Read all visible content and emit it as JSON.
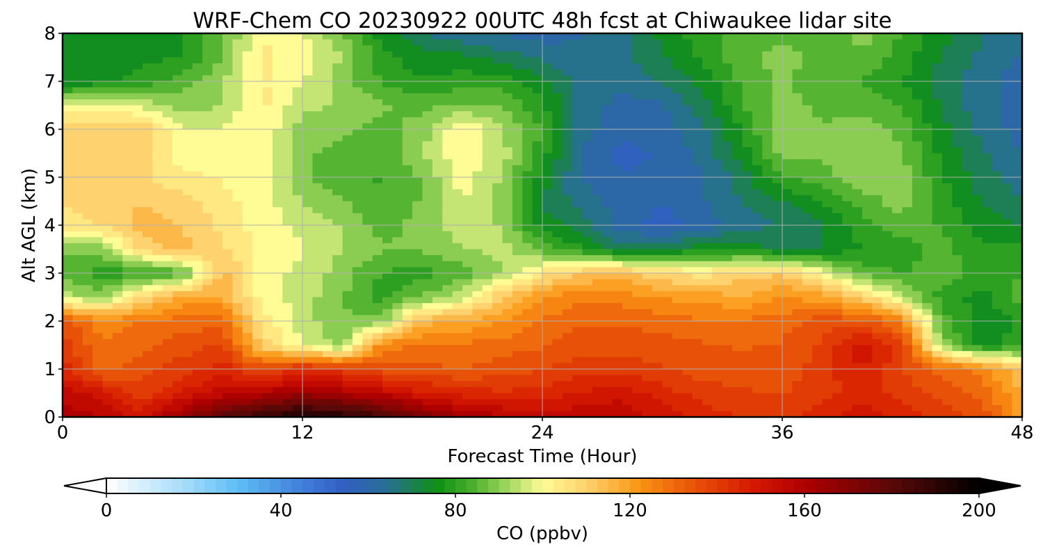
{
  "chart_data": {
    "type": "heatmap",
    "title": "WRF-Chem CO  20230922 00UTC 48h fcst at Chiwaukee lidar site",
    "xlabel": "Forecast Time (Hour)",
    "ylabel": "Alt AGL (km)",
    "xlim": [
      0,
      48
    ],
    "ylim": [
      0,
      8
    ],
    "x_ticks": [
      0,
      12,
      24,
      36,
      48
    ],
    "y_ticks": [
      0,
      1,
      2,
      3,
      4,
      5,
      6,
      7,
      8
    ],
    "grid": true,
    "colorbar": {
      "label": "CO  (ppbv)",
      "range": [
        0,
        200
      ],
      "ticks": [
        0,
        40,
        80,
        120,
        160,
        200
      ],
      "extend": "both",
      "placement": "bottom"
    },
    "x": [
      0,
      2,
      4,
      6,
      8,
      10,
      12,
      14,
      16,
      18,
      20,
      22,
      24,
      26,
      28,
      30,
      32,
      34,
      36,
      38,
      40,
      42,
      44,
      46,
      48
    ],
    "y": [
      0,
      0.5,
      1,
      1.5,
      2,
      2.5,
      3,
      3.5,
      4,
      4.5,
      5,
      5.5,
      6,
      6.5,
      7,
      7.5,
      8
    ],
    "z": [
      [
        160,
        158,
        150,
        165,
        180,
        188,
        195,
        192,
        185,
        172,
        162,
        158,
        155,
        156,
        158,
        150,
        145,
        142,
        140,
        145,
        150,
        145,
        140,
        135,
        120
      ],
      [
        155,
        150,
        140,
        148,
        155,
        158,
        165,
        160,
        155,
        148,
        145,
        143,
        145,
        148,
        150,
        145,
        140,
        138,
        137,
        140,
        145,
        140,
        136,
        130,
        118
      ],
      [
        145,
        130,
        135,
        140,
        145,
        135,
        145,
        140,
        135,
        135,
        132,
        135,
        137,
        140,
        140,
        138,
        135,
        135,
        135,
        140,
        148,
        138,
        130,
        125,
        112
      ],
      [
        140,
        128,
        130,
        135,
        138,
        110,
        98,
        90,
        125,
        128,
        128,
        130,
        132,
        136,
        135,
        135,
        133,
        132,
        133,
        138,
        150,
        140,
        90,
        75,
        80
      ],
      [
        135,
        125,
        128,
        130,
        130,
        105,
        95,
        88,
        90,
        115,
        118,
        122,
        128,
        132,
        132,
        130,
        128,
        128,
        130,
        135,
        135,
        125,
        85,
        75,
        78
      ],
      [
        95,
        90,
        108,
        118,
        118,
        100,
        95,
        88,
        80,
        88,
        95,
        112,
        122,
        126,
        125,
        122,
        120,
        118,
        122,
        120,
        110,
        95,
        80,
        75,
        85
      ],
      [
        85,
        80,
        80,
        85,
        115,
        100,
        96,
        90,
        82,
        80,
        85,
        92,
        105,
        112,
        114,
        108,
        105,
        110,
        112,
        100,
        85,
        82,
        85,
        80,
        82
      ],
      [
        88,
        90,
        110,
        115,
        108,
        100,
        98,
        92,
        88,
        88,
        92,
        95,
        85,
        78,
        70,
        72,
        75,
        75,
        72,
        72,
        78,
        80,
        85,
        78,
        80
      ],
      [
        105,
        108,
        115,
        112,
        106,
        100,
        96,
        92,
        85,
        90,
        95,
        92,
        75,
        70,
        60,
        55,
        60,
        65,
        68,
        72,
        80,
        85,
        82,
        75,
        72
      ],
      [
        108,
        110,
        112,
        110,
        104,
        100,
        92,
        88,
        82,
        88,
        98,
        90,
        72,
        65,
        60,
        58,
        62,
        68,
        72,
        78,
        85,
        90,
        80,
        72,
        68
      ],
      [
        110,
        110,
        108,
        104,
        102,
        100,
        88,
        85,
        82,
        88,
        100,
        92,
        75,
        62,
        58,
        58,
        62,
        70,
        82,
        85,
        92,
        90,
        78,
        70,
        65
      ],
      [
        112,
        112,
        110,
        100,
        100,
        100,
        88,
        86,
        84,
        92,
        102,
        95,
        80,
        62,
        56,
        58,
        64,
        75,
        90,
        88,
        92,
        88,
        76,
        68,
        62
      ],
      [
        112,
        112,
        112,
        98,
        98,
        102,
        90,
        88,
        86,
        90,
        104,
        92,
        82,
        65,
        58,
        60,
        66,
        78,
        92,
        88,
        90,
        86,
        74,
        66,
        60
      ],
      [
        98,
        100,
        96,
        90,
        92,
        104,
        94,
        92,
        88,
        86,
        88,
        88,
        78,
        66,
        60,
        62,
        70,
        82,
        90,
        86,
        86,
        82,
        72,
        64,
        60
      ],
      [
        72,
        75,
        80,
        85,
        92,
        103,
        98,
        90,
        82,
        78,
        80,
        80,
        74,
        66,
        64,
        68,
        74,
        84,
        88,
        84,
        82,
        78,
        70,
        64,
        60
      ],
      [
        76,
        72,
        76,
        78,
        88,
        104,
        100,
        92,
        80,
        74,
        74,
        70,
        66,
        64,
        66,
        72,
        78,
        86,
        90,
        85,
        86,
        80,
        72,
        66,
        62
      ],
      [
        78,
        74,
        72,
        76,
        86,
        102,
        98,
        88,
        74,
        68,
        64,
        62,
        60,
        62,
        66,
        74,
        80,
        85,
        86,
        84,
        90,
        82,
        74,
        68,
        64
      ]
    ]
  }
}
